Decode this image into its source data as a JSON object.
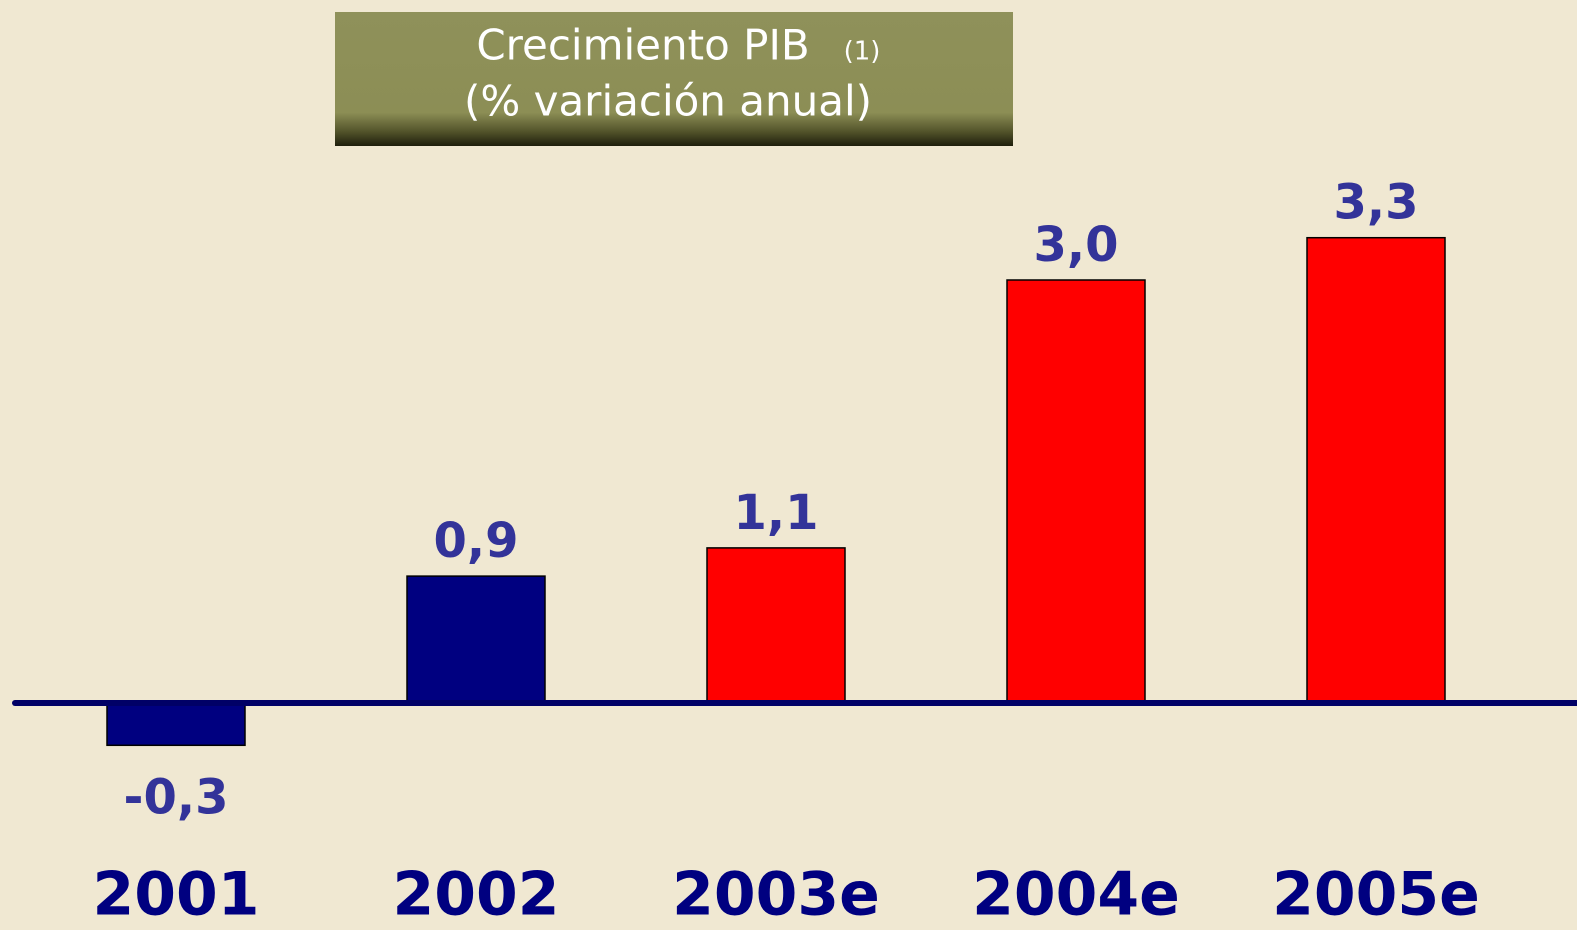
{
  "chart_data": {
    "type": "bar",
    "title": "Crecimiento PIB",
    "title_note": "(1)",
    "subtitle": "(% variación anual)",
    "categories": [
      "2001",
      "2002",
      "2003e",
      "2004e",
      "2005e"
    ],
    "values": [
      -0.3,
      0.9,
      1.1,
      3.0,
      3.3
    ],
    "value_labels": [
      "-0,3",
      "0,9",
      "1,1",
      "3,0",
      "3,3"
    ],
    "colors": [
      "#000080",
      "#000080",
      "#ff0000",
      "#ff0000",
      "#ff0000"
    ],
    "ylim": [
      -1,
      3.5
    ]
  }
}
